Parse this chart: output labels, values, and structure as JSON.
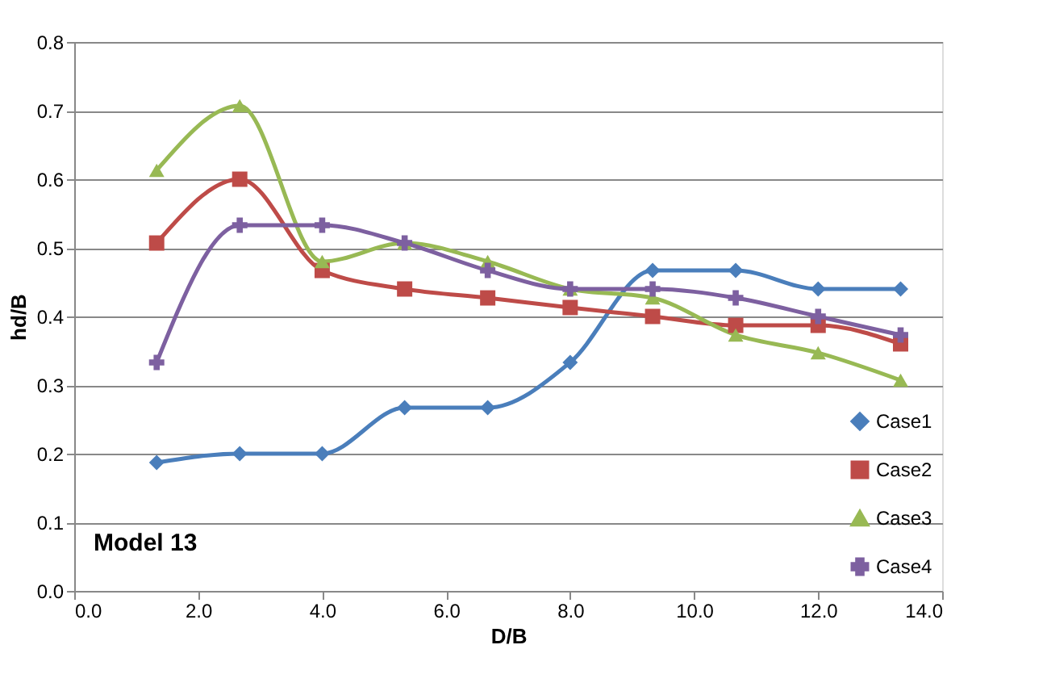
{
  "chart_data": {
    "type": "line",
    "xlabel": "D/B",
    "ylabel": "hd/B",
    "x": [
      1.33,
      2.67,
      4.0,
      5.33,
      6.67,
      8.0,
      9.33,
      10.67,
      12.0,
      13.33
    ],
    "series": [
      {
        "name": "Case1",
        "color": "#4a7ebb",
        "marker": "diamond",
        "values": [
          0.187,
          0.2,
          0.2,
          0.267,
          0.267,
          0.333,
          0.467,
          0.467,
          0.44,
          0.44
        ]
      },
      {
        "name": "Case2",
        "color": "#be4b48",
        "marker": "square",
        "values": [
          0.507,
          0.6,
          0.467,
          0.44,
          0.427,
          0.413,
          0.4,
          0.387,
          0.387,
          0.36
        ]
      },
      {
        "name": "Case3",
        "color": "#98b954",
        "marker": "triangle",
        "values": [
          0.613,
          0.707,
          0.48,
          0.507,
          0.48,
          0.44,
          0.427,
          0.373,
          0.347,
          0.307
        ]
      },
      {
        "name": "Case4",
        "color": "#7d60a0",
        "marker": "cross",
        "values": [
          0.333,
          0.533,
          0.533,
          0.507,
          0.467,
          0.44,
          0.44,
          0.427,
          0.4,
          0.373
        ]
      }
    ],
    "xlim": [
      0.0,
      14.0
    ],
    "xticks": [
      {
        "value": 0,
        "label": "0.0"
      },
      {
        "value": 2,
        "label": "2.0"
      },
      {
        "value": 4,
        "label": "4.0"
      },
      {
        "value": 6,
        "label": "6.0"
      },
      {
        "value": 8,
        "label": "8.0"
      },
      {
        "value": 10,
        "label": "10.0"
      },
      {
        "value": 12,
        "label": "12.0"
      },
      {
        "value": 14,
        "label": "14.0"
      }
    ],
    "ylim": [
      0.0,
      0.8
    ],
    "yticks": [
      {
        "value": 0,
        "label": "0.0"
      },
      {
        "value": 0.1,
        "label": "0.1"
      },
      {
        "value": 0.2,
        "label": "0.2"
      },
      {
        "value": 0.3,
        "label": "0.3"
      },
      {
        "value": 0.4,
        "label": "0.4"
      },
      {
        "value": 0.5,
        "label": "0.5"
      },
      {
        "value": 0.6,
        "label": "0.6"
      },
      {
        "value": 0.7,
        "label": "0.7"
      },
      {
        "value": 0.8,
        "label": "0.8"
      }
    ],
    "grid": "y",
    "legend": "bottom right",
    "line_style": "solid",
    "annotations": [
      "Model 13"
    ]
  }
}
